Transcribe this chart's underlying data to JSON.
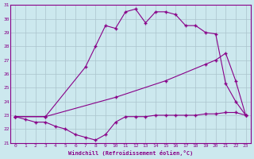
{
  "xlabel": "Windchill (Refroidissement éolien,°C)",
  "xlim": [
    -0.5,
    23.5
  ],
  "ylim": [
    21,
    31
  ],
  "yticks": [
    21,
    22,
    23,
    24,
    25,
    26,
    27,
    28,
    29,
    30,
    31
  ],
  "xticks": [
    0,
    1,
    2,
    3,
    4,
    5,
    6,
    7,
    8,
    9,
    10,
    11,
    12,
    13,
    14,
    15,
    16,
    17,
    18,
    19,
    20,
    21,
    22,
    23
  ],
  "bg_color": "#cce8ee",
  "grid_color": "#aac4cc",
  "line_color": "#880088",
  "line1_x": [
    0,
    1,
    2,
    3,
    4,
    5,
    6,
    7,
    8,
    9,
    10,
    11,
    12,
    13,
    14,
    15,
    16,
    17,
    18,
    19,
    20,
    21,
    22,
    23
  ],
  "line1_y": [
    22.9,
    22.7,
    22.5,
    22.5,
    22.2,
    22.0,
    21.6,
    21.4,
    21.2,
    21.6,
    22.5,
    22.9,
    22.9,
    22.9,
    23.0,
    23.0,
    23.0,
    23.0,
    23.0,
    23.1,
    23.1,
    23.2,
    23.2,
    23.0
  ],
  "line2_x": [
    0,
    3,
    10,
    15,
    19,
    20,
    21,
    22,
    23
  ],
  "line2_y": [
    22.9,
    22.9,
    24.3,
    25.5,
    26.7,
    27.0,
    27.5,
    25.5,
    23.0
  ],
  "line3_x": [
    0,
    3,
    7,
    8,
    9,
    10,
    11,
    12,
    13,
    14,
    15,
    16,
    17,
    18,
    19,
    20,
    21,
    22,
    23
  ],
  "line3_y": [
    22.9,
    22.9,
    26.5,
    28.0,
    29.5,
    29.3,
    30.5,
    30.7,
    29.7,
    30.5,
    30.5,
    30.3,
    29.5,
    29.5,
    29.0,
    28.9,
    25.3,
    24.0,
    23.0
  ]
}
